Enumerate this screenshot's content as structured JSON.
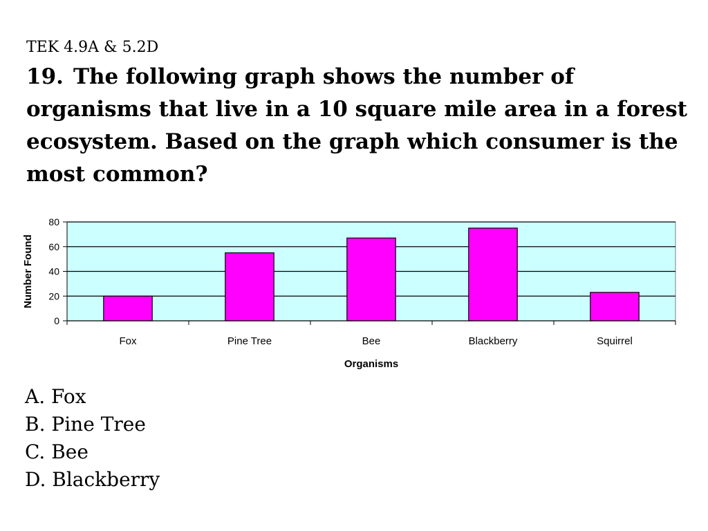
{
  "slide": {
    "standard": "TEK 4.9A & 5.2D",
    "question_number": "19.",
    "question_text": "The following graph shows the number of organisms that live in a 10 square mile area in a forest ecosystem. Based on the graph which consumer is the most common?"
  },
  "answers": [
    {
      "letter": "A.",
      "text": "Fox"
    },
    {
      "letter": "B.",
      "text": "Pine Tree"
    },
    {
      "letter": "C.",
      "text": "Bee"
    },
    {
      "letter": "D.",
      "text": "Blackberry"
    }
  ],
  "chart_data": {
    "type": "bar",
    "title": "",
    "xlabel": "Organisms",
    "ylabel": "Number Found",
    "categories": [
      "Fox",
      "Pine Tree",
      "Bee",
      "Blackberry",
      "Squirrel"
    ],
    "values": [
      20,
      55,
      67,
      75,
      23
    ],
    "ylim": [
      0,
      80
    ],
    "yticks": [
      "0",
      "20",
      "40",
      "60",
      "80"
    ],
    "grid": true,
    "legend": "none",
    "colors": {
      "bar": "#ff00ff",
      "plot_background": "#ccffff",
      "gridline": "#000000"
    }
  }
}
